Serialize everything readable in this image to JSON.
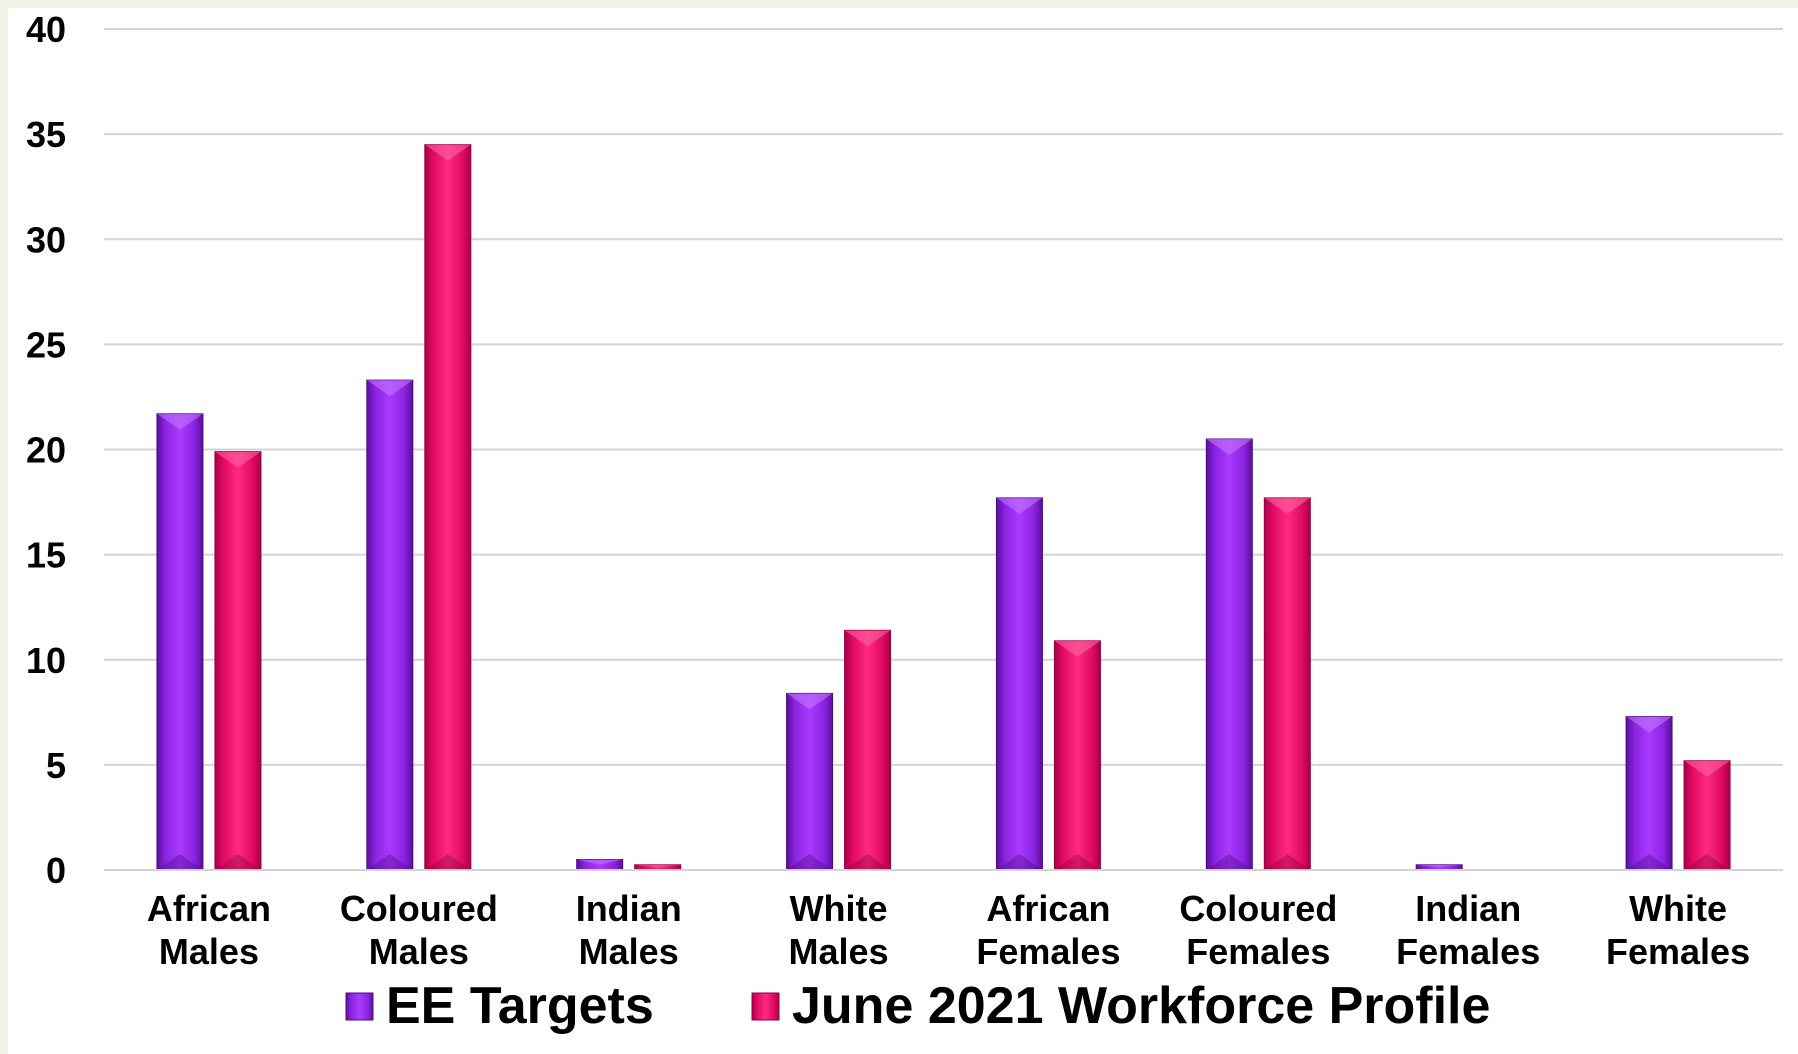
{
  "chart_data": {
    "type": "bar",
    "title": "",
    "xlabel": "",
    "ylabel": "",
    "categories": [
      [
        "African",
        "Males"
      ],
      [
        "Coloured",
        "Males"
      ],
      [
        "Indian",
        "Males"
      ],
      [
        "White",
        "Males"
      ],
      [
        "African",
        "Females"
      ],
      [
        "Coloured",
        "Females"
      ],
      [
        "Indian",
        "Females"
      ],
      [
        "White",
        "Females"
      ]
    ],
    "series": [
      {
        "name": "EE Targets",
        "color": "#9b2cf0",
        "values": [
          21.7,
          23.3,
          0.5,
          8.4,
          17.7,
          20.5,
          0.25,
          7.3
        ]
      },
      {
        "name": "June 2021 Workforce Profile",
        "color": "#f0106a",
        "values": [
          19.9,
          34.5,
          0.25,
          11.4,
          10.9,
          17.7,
          0,
          5.2
        ]
      }
    ],
    "ylim": [
      0,
      40
    ],
    "yticks": [
      0,
      5,
      10,
      15,
      20,
      25,
      30,
      35,
      40
    ],
    "grid": true,
    "legend_position": "bottom"
  }
}
